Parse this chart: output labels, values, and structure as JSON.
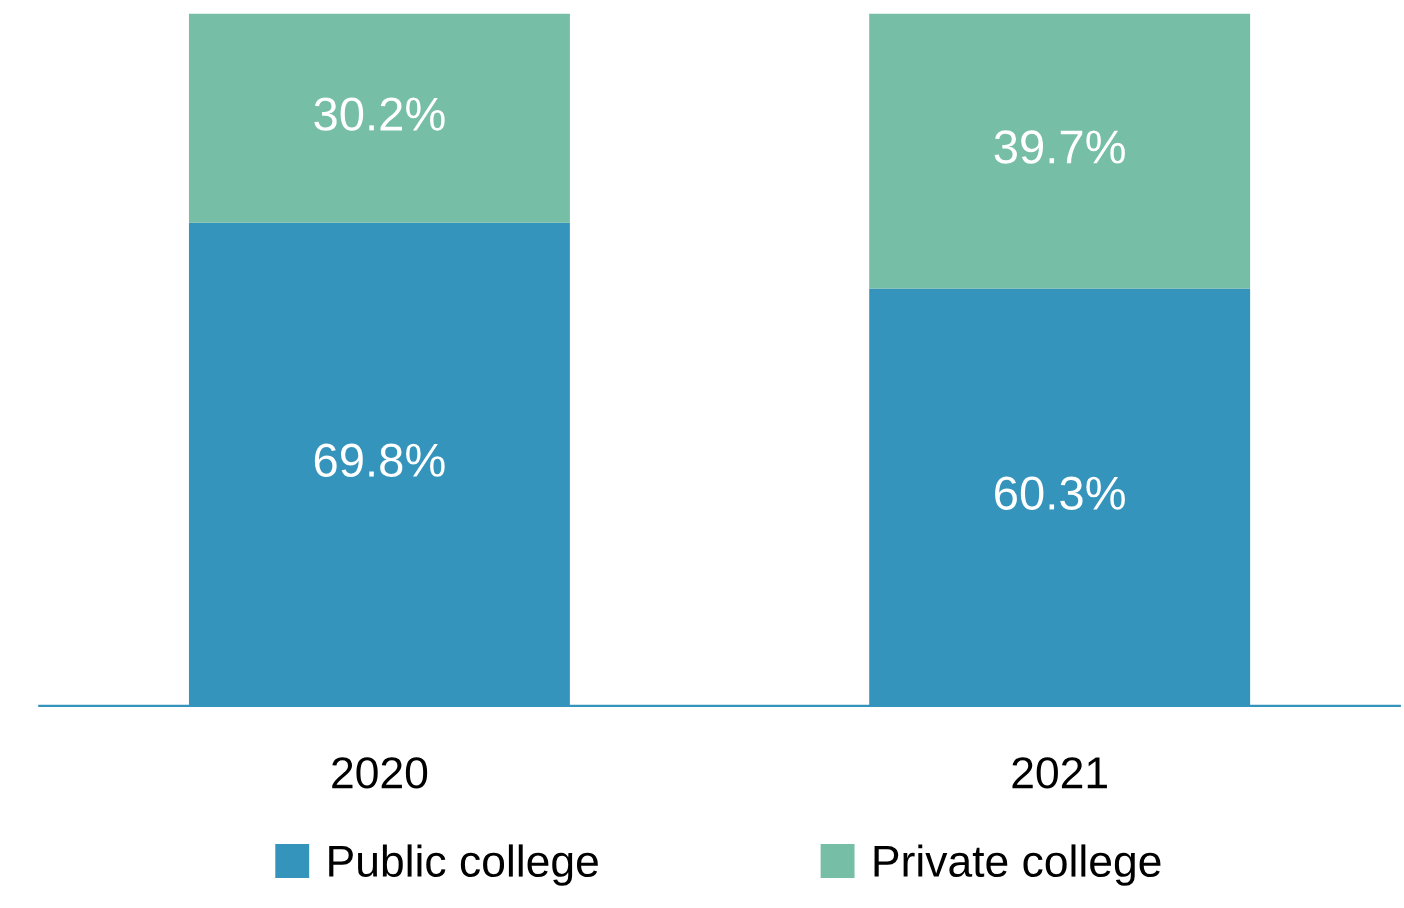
{
  "chart_data": {
    "type": "bar",
    "stacked": true,
    "categories": [
      "2020",
      "2021"
    ],
    "series": [
      {
        "name": "Public college",
        "color": "#3594bb",
        "values": [
          69.8,
          60.3
        ],
        "value_labels": [
          "69.8%",
          "60.3%"
        ]
      },
      {
        "name": "Private college",
        "color": "#76bea6",
        "values": [
          30.2,
          39.7
        ],
        "value_labels": [
          "30.2%",
          "39.7%"
        ]
      }
    ],
    "legend": "bottom",
    "grid": false
  }
}
